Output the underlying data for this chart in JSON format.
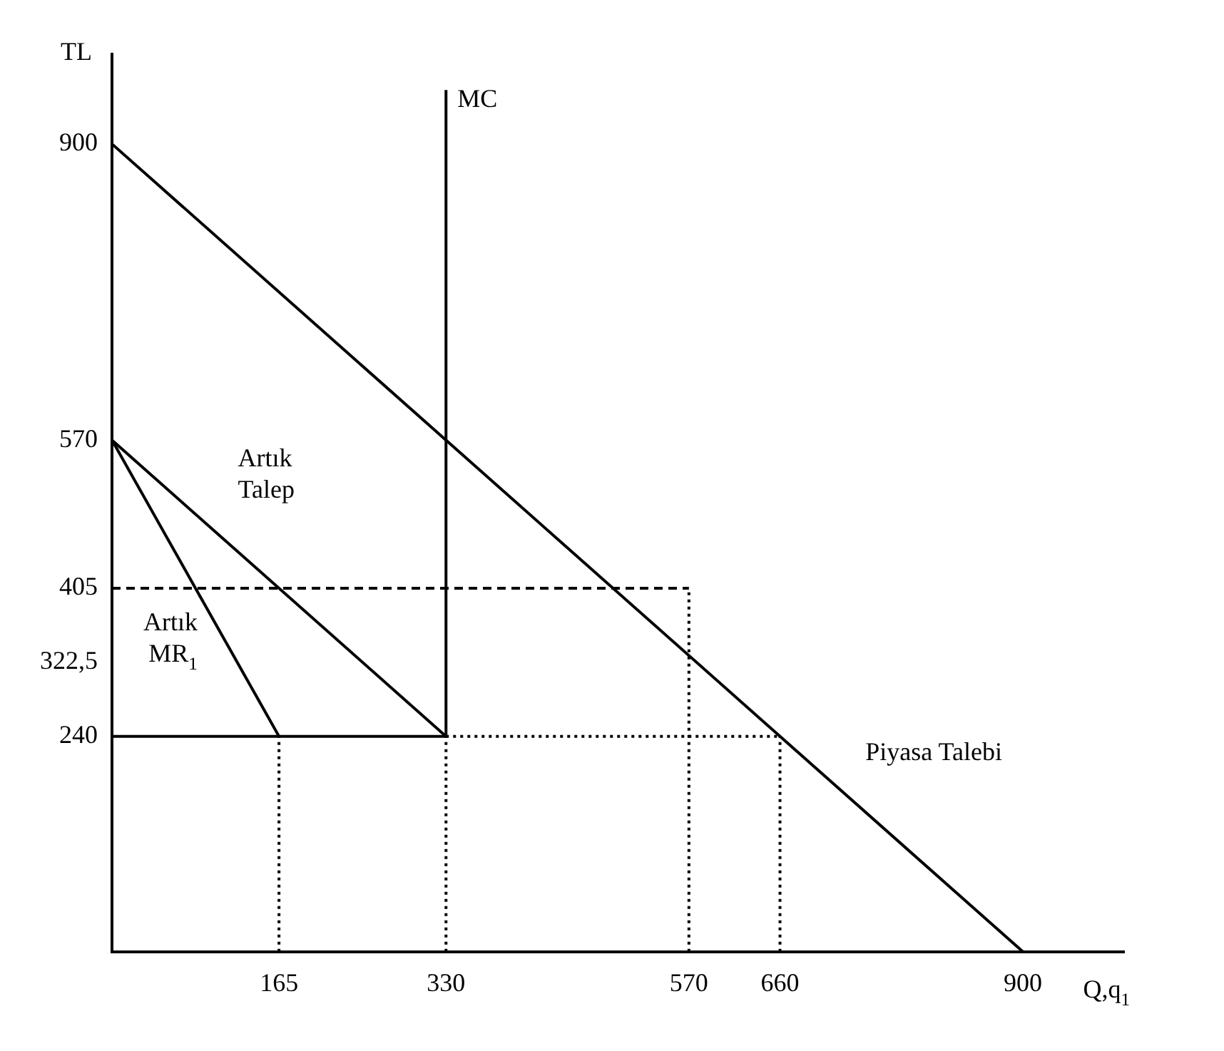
{
  "chart_data": {
    "type": "line",
    "xlabel": "Q,q$_{1}$",
    "ylabel": "TL",
    "xlim": [
      0,
      1000
    ],
    "ylim": [
      0,
      1000
    ],
    "xticks": [
      165,
      330,
      570,
      660,
      900
    ],
    "yticks": [
      240,
      {
        "value": 322.5,
        "label": "322,5"
      },
      405,
      570,
      900
    ],
    "grid": false,
    "legend": false,
    "marker": "none",
    "series": [
      {
        "name": "Piyasa Talebi",
        "color": "#000000",
        "x": [
          0,
          900
        ],
        "values": [
          900,
          0
        ]
      },
      {
        "name": "Artık Talep",
        "color": "#000000",
        "x": [
          0,
          330
        ],
        "values": [
          570,
          240
        ]
      },
      {
        "name": "Artık MR$_{1}$",
        "color": "#000000",
        "x": [
          0,
          165
        ],
        "values": [
          570,
          240
        ]
      },
      {
        "name": "MC",
        "color": "#000000",
        "x": [
          330,
          330
        ],
        "values": [
          240,
          960
        ]
      },
      {
        "color": "#000000",
        "x": [
          0,
          330
        ],
        "values": [
          240,
          240
        ]
      },
      {
        "color": "#000000",
        "line_style": "dashed",
        "x": [
          0,
          570
        ],
        "values": [
          405,
          405
        ]
      },
      {
        "color": "#000000",
        "line_style": "dotted",
        "x": [
          330,
          660
        ],
        "values": [
          240,
          240
        ]
      },
      {
        "color": "#000000",
        "line_style": "dotted",
        "x": [
          165,
          165
        ],
        "values": [
          0,
          240
        ]
      },
      {
        "color": "#000000",
        "line_style": "dotted",
        "x": [
          330,
          330
        ],
        "values": [
          0,
          240
        ]
      },
      {
        "color": "#000000",
        "line_style": "dotted",
        "x": [
          570,
          570
        ],
        "values": [
          0,
          405
        ]
      },
      {
        "color": "#000000",
        "line_style": "dotted",
        "x": [
          660,
          660
        ],
        "values": [
          0,
          240
        ]
      }
    ]
  }
}
